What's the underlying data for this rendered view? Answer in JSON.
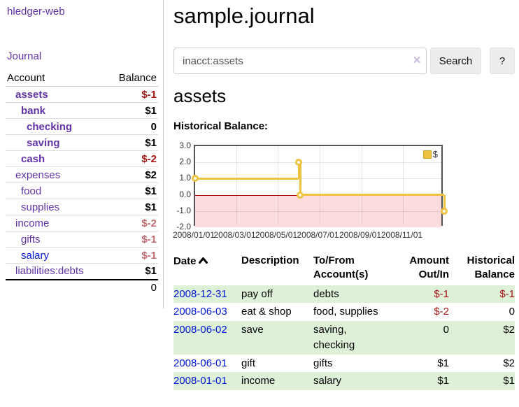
{
  "app": {
    "brand": "hledger-web"
  },
  "sidebar": {
    "journal_link": "Journal",
    "accounts_table": {
      "headers": {
        "account": "Account",
        "balance": "Balance"
      },
      "rows": [
        {
          "name": "assets",
          "balance": "$-1",
          "level": 1,
          "bold": true,
          "neg": "strong"
        },
        {
          "name": "bank",
          "balance": "$1",
          "level": 2,
          "bold": true,
          "neg": "none"
        },
        {
          "name": "checking",
          "balance": "0",
          "level": 3,
          "bold": true,
          "neg": "none"
        },
        {
          "name": "saving",
          "balance": "$1",
          "level": 3,
          "bold": true,
          "neg": "none"
        },
        {
          "name": "cash",
          "balance": "$-2",
          "level": 2,
          "bold": true,
          "neg": "strong"
        },
        {
          "name": "expenses",
          "balance": "$2",
          "level": 1,
          "bold": false,
          "neg": "none"
        },
        {
          "name": "food",
          "balance": "$1",
          "level": 2,
          "bold": false,
          "neg": "none"
        },
        {
          "name": "supplies",
          "balance": "$1",
          "level": 2,
          "bold": false,
          "neg": "none"
        },
        {
          "name": "income",
          "balance": "$-2",
          "level": 1,
          "bold": false,
          "neg": "soft"
        },
        {
          "name": "gifts",
          "balance": "$-1",
          "level": 2,
          "bold": false,
          "neg": "soft"
        },
        {
          "name": "salary",
          "balance": "$-1",
          "level": 2,
          "bold": false,
          "neg": "soft",
          "link_color": "blue"
        },
        {
          "name": "liabilities:debts",
          "balance": "$1",
          "level": 1,
          "bold": false,
          "neg": "none"
        }
      ],
      "total": "0"
    }
  },
  "main": {
    "title": "sample.journal",
    "search": {
      "value": "inacct:assets",
      "clear_icon": "×",
      "button_label": "Search",
      "help_label": "?"
    },
    "account_heading": "assets",
    "chart_label": "Historical Balance:"
  },
  "chart_data": {
    "type": "line",
    "title": "Historical Balance",
    "step": true,
    "series": [
      {
        "name": "$",
        "points": [
          [
            "2008-01-01",
            1
          ],
          [
            "2008-06-01",
            2
          ],
          [
            "2008-06-03",
            0
          ],
          [
            "2008-12-31",
            -1
          ]
        ]
      }
    ],
    "xlim": [
      "2008-01-01",
      "2008-12-31"
    ],
    "ylim": [
      -2,
      3
    ],
    "yticks": [
      "3.0",
      "2.0",
      "1.0",
      "0.0",
      "-1.0",
      "-2.0"
    ],
    "xticks": [
      "2008/01/01",
      "2008/03/01",
      "2008/05/01",
      "2008/07/01",
      "2008/09/01",
      "2008/11/01"
    ],
    "legend": "$",
    "legend_position": "top-right",
    "grid": true,
    "colors": {
      "line": "#edc240",
      "negative_region": "#fcdcdc",
      "zero_line": "#a40000"
    }
  },
  "register": {
    "headers": {
      "date": "Date",
      "description": "Description",
      "accounts": "To/From Account(s)",
      "amount": "Amount Out/In",
      "balance": "Historical Balance"
    },
    "rows": [
      {
        "date": "2008-12-31",
        "description": "pay off",
        "accounts": "debts",
        "amount": "$-1",
        "balance": "$-1",
        "amount_neg": true,
        "balance_neg": true
      },
      {
        "date": "2008-06-03",
        "description": "eat & shop",
        "accounts": "food, supplies",
        "amount": "$-2",
        "balance": "0",
        "amount_neg": true,
        "balance_neg": false
      },
      {
        "date": "2008-06-02",
        "description": "save",
        "accounts": "saving, checking",
        "amount": "0",
        "balance": "$2",
        "amount_neg": false,
        "balance_neg": false
      },
      {
        "date": "2008-06-01",
        "description": "gift",
        "accounts": "gifts",
        "amount": "$1",
        "balance": "$2",
        "amount_neg": false,
        "balance_neg": false
      },
      {
        "date": "2008-01-01",
        "description": "income",
        "accounts": "salary",
        "amount": "$1",
        "balance": "$1",
        "amount_neg": false,
        "balance_neg": false
      }
    ]
  }
}
